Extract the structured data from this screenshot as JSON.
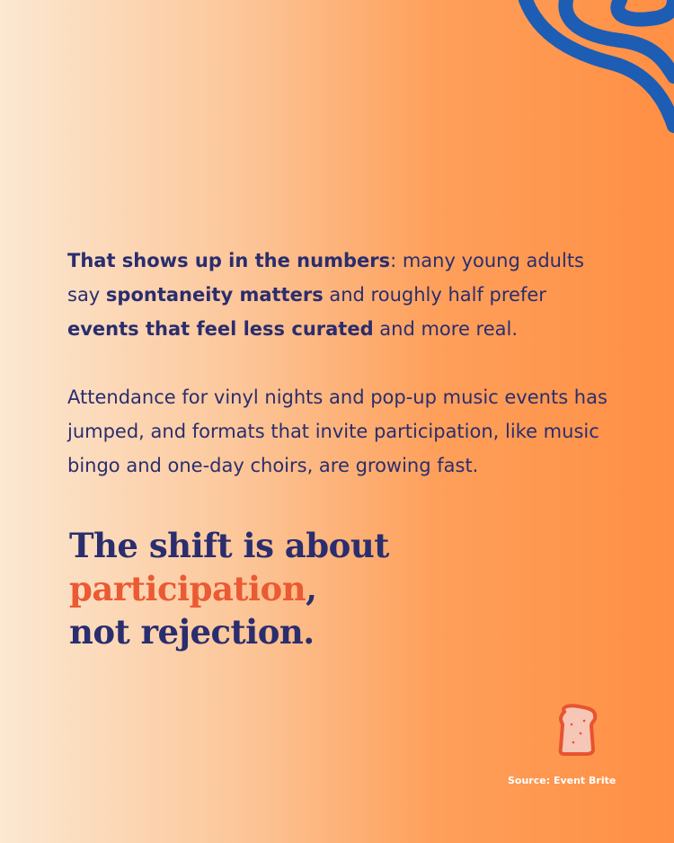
{
  "paragraphs": [
    {
      "segments": [
        "That shows up in the numbers",
        ": many young adults say ",
        "spontaneity matters",
        " and roughly half prefer ",
        "events that feel less curated",
        " and more real."
      ]
    },
    {
      "segments": [
        "Attendance for vinyl nights and pop-up music events has jumped, and formats that invite participation, like music bingo and one-day choirs, are growing fast."
      ]
    }
  ],
  "headline": {
    "segments": [
      "The shift is about ",
      "participation",
      ",",
      "not rejection."
    ]
  },
  "source": "Source: Event Brite"
}
